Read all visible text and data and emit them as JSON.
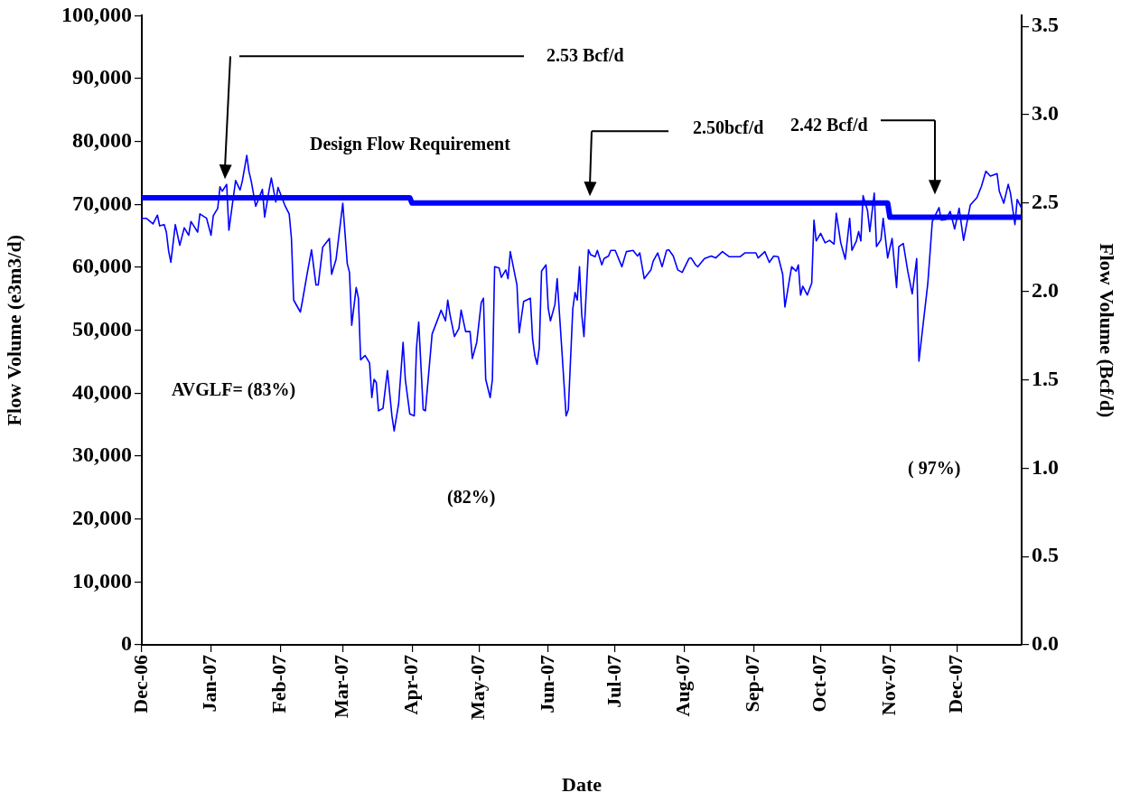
{
  "chart_data": {
    "type": "line",
    "xlabel": "Date",
    "ylabel": "Flow Volume (e3m3/d)",
    "y2label": "Flow Volume (Bcf/d)",
    "xlim": [
      "2006-12-01",
      "2007-12-30"
    ],
    "xticks": [
      {
        "value": "2006-12-01",
        "label": "Dec-06"
      },
      {
        "value": "2007-01-01",
        "label": "Jan-07"
      },
      {
        "value": "2007-02-01",
        "label": "Feb-07"
      },
      {
        "value": "2007-03-01",
        "label": "Mar-07"
      },
      {
        "value": "2007-04-01",
        "label": "Apr-07"
      },
      {
        "value": "2007-05-01",
        "label": "May-07"
      },
      {
        "value": "2007-06-01",
        "label": "Jun-07"
      },
      {
        "value": "2007-07-01",
        "label": "Jul-07"
      },
      {
        "value": "2007-08-01",
        "label": "Aug-07"
      },
      {
        "value": "2007-09-01",
        "label": "Sep-07"
      },
      {
        "value": "2007-10-01",
        "label": "Oct-07"
      },
      {
        "value": "2007-11-01",
        "label": "Nov-07"
      },
      {
        "value": "2007-12-01",
        "label": "Dec-07"
      }
    ],
    "ylim": [
      0,
      100000
    ],
    "yticks": [
      {
        "value": 0,
        "label": "0"
      },
      {
        "value": 10000,
        "label": "10,000"
      },
      {
        "value": 20000,
        "label": "20,000"
      },
      {
        "value": 30000,
        "label": "30,000"
      },
      {
        "value": 40000,
        "label": "40,000"
      },
      {
        "value": 50000,
        "label": "50,000"
      },
      {
        "value": 60000,
        "label": "60,000"
      },
      {
        "value": 70000,
        "label": "70,000"
      },
      {
        "value": 80000,
        "label": "80,000"
      },
      {
        "value": 90000,
        "label": "90,000"
      },
      {
        "value": 100000,
        "label": "100,000"
      }
    ],
    "y2lim": [
      0,
      3.56
    ],
    "y2ticks": [
      {
        "value": 0,
        "label": "0.0"
      },
      {
        "value": 0.5,
        "label": "0.5"
      },
      {
        "value": 1,
        "label": "1.0"
      },
      {
        "value": 1.5,
        "label": "1.5"
      },
      {
        "value": 2,
        "label": "2.0"
      },
      {
        "value": 2.5,
        "label": "2.5"
      },
      {
        "value": 3,
        "label": "3.0"
      },
      {
        "value": 3.5,
        "label": "3.5"
      }
    ],
    "grid": false,
    "legend": false,
    "marker": "none",
    "annotations": [
      "2.53 Bcf/d",
      "Design Flow Requirement",
      "2.50bcf/d",
      "2.42 Bcf/d",
      "AVGLF= (83%)",
      "(82%)",
      "( 97%)"
    ],
    "series": [
      {
        "color": "#0000ff",
        "x": [
          "2006-12-01",
          "2006-12-03",
          "2006-12-06",
          "2006-12-08",
          "2006-12-09",
          "2006-12-11",
          "2006-12-12",
          "2006-12-13",
          "2006-12-14",
          "2006-12-16",
          "2006-12-18",
          "2006-12-20",
          "2006-12-22",
          "2006-12-23",
          "2006-12-26",
          "2006-12-27",
          "2006-12-30",
          "2007-01-01",
          "2007-01-02",
          "2007-01-04",
          "2007-01-05",
          "2007-01-06",
          "2007-01-08",
          "2007-01-09",
          "2007-01-12",
          "2007-01-14",
          "2007-01-15",
          "2007-01-17",
          "2007-01-18",
          "2007-01-19",
          "2007-01-21",
          "2007-01-24",
          "2007-01-25",
          "2007-01-27",
          "2007-01-28",
          "2007-01-30",
          "2007-01-31",
          "2007-02-03",
          "2007-02-05",
          "2007-02-06",
          "2007-02-07",
          "2007-02-10",
          "2007-02-11",
          "2007-02-13",
          "2007-02-15",
          "2007-02-17",
          "2007-02-18",
          "2007-02-20",
          "2007-02-23",
          "2007-02-24",
          "2007-02-26",
          "2007-03-01",
          "2007-03-03",
          "2007-03-04",
          "2007-03-05",
          "2007-03-07",
          "2007-03-08",
          "2007-03-09",
          "2007-03-11",
          "2007-03-13",
          "2007-03-14",
          "2007-03-15",
          "2007-03-16",
          "2007-03-17",
          "2007-03-19",
          "2007-03-21",
          "2007-03-23",
          "2007-03-24",
          "2007-03-26",
          "2007-03-28",
          "2007-03-29",
          "2007-03-31",
          "2007-04-02",
          "2007-04-03",
          "2007-04-04",
          "2007-04-06",
          "2007-04-07",
          "2007-04-10",
          "2007-04-13",
          "2007-04-14",
          "2007-04-16",
          "2007-04-17",
          "2007-04-18",
          "2007-04-20",
          "2007-04-22",
          "2007-04-23",
          "2007-04-25",
          "2007-04-27",
          "2007-04-28",
          "2007-04-30",
          "2007-05-02",
          "2007-05-03",
          "2007-05-04",
          "2007-05-06",
          "2007-05-07",
          "2007-05-08",
          "2007-05-10",
          "2007-05-11",
          "2007-05-13",
          "2007-05-14",
          "2007-05-15",
          "2007-05-18",
          "2007-05-19",
          "2007-05-21",
          "2007-05-24",
          "2007-05-25",
          "2007-05-26",
          "2007-05-27",
          "2007-05-28",
          "2007-05-29",
          "2007-05-31",
          "2007-06-01",
          "2007-06-02",
          "2007-06-04",
          "2007-06-05",
          "2007-06-07",
          "2007-06-09",
          "2007-06-10",
          "2007-06-12",
          "2007-06-13",
          "2007-06-14",
          "2007-06-15",
          "2007-06-16",
          "2007-06-17",
          "2007-06-19",
          "2007-06-20",
          "2007-06-22",
          "2007-06-23",
          "2007-06-25",
          "2007-06-26",
          "2007-06-28",
          "2007-06-29",
          "2007-07-01",
          "2007-07-04",
          "2007-07-06",
          "2007-07-09",
          "2007-07-11",
          "2007-07-12",
          "2007-07-14",
          "2007-07-17",
          "2007-07-18",
          "2007-07-20",
          "2007-07-22",
          "2007-07-24",
          "2007-07-25",
          "2007-07-27",
          "2007-07-29",
          "2007-07-31",
          "2007-08-03",
          "2007-08-04",
          "2007-08-06",
          "2007-08-07",
          "2007-08-10",
          "2007-08-13",
          "2007-08-15",
          "2007-08-18",
          "2007-08-21",
          "2007-08-26",
          "2007-08-28",
          "2007-09-02",
          "2007-09-03",
          "2007-09-06",
          "2007-09-08",
          "2007-09-10",
          "2007-09-12",
          "2007-09-14",
          "2007-09-15",
          "2007-09-17",
          "2007-09-18",
          "2007-09-20",
          "2007-09-21",
          "2007-09-22",
          "2007-09-23",
          "2007-09-25",
          "2007-09-27",
          "2007-09-28",
          "2007-09-29",
          "2007-10-01",
          "2007-10-03",
          "2007-10-05",
          "2007-10-07",
          "2007-10-08",
          "2007-10-10",
          "2007-10-12",
          "2007-10-14",
          "2007-10-15",
          "2007-10-17",
          "2007-10-18",
          "2007-10-19",
          "2007-10-20",
          "2007-10-22",
          "2007-10-23",
          "2007-10-25",
          "2007-10-26",
          "2007-10-28",
          "2007-10-29",
          "2007-10-31",
          "2007-11-02",
          "2007-11-04",
          "2007-11-05",
          "2007-11-07",
          "2007-11-09",
          "2007-11-11",
          "2007-11-13",
          "2007-11-14",
          "2007-11-18",
          "2007-11-20",
          "2007-11-23",
          "2007-11-24",
          "2007-11-26",
          "2007-11-28",
          "2007-11-30",
          "2007-12-02",
          "2007-12-04",
          "2007-12-07",
          "2007-12-10",
          "2007-12-12",
          "2007-12-14",
          "2007-12-16",
          "2007-12-19",
          "2007-12-20",
          "2007-12-22",
          "2007-12-24",
          "2007-12-25",
          "2007-12-27",
          "2007-12-28",
          "2007-12-30"
        ],
        "values": [
          67800,
          67800,
          66900,
          68300,
          66600,
          66800,
          65600,
          62600,
          60800,
          66800,
          63500,
          66300,
          65100,
          67300,
          65600,
          68500,
          67800,
          65100,
          68200,
          69400,
          72800,
          72100,
          73200,
          65900,
          73800,
          72300,
          73700,
          77800,
          75200,
          73700,
          69700,
          72400,
          68000,
          72300,
          74200,
          70400,
          72700,
          69900,
          68500,
          64600,
          54800,
          52900,
          54800,
          58900,
          62800,
          57200,
          57200,
          63200,
          64600,
          58900,
          61300,
          70200,
          60600,
          59200,
          50800,
          56800,
          55100,
          45300,
          46000,
          44800,
          39300,
          42200,
          41700,
          37200,
          37600,
          43600,
          36400,
          34000,
          38300,
          48100,
          42200,
          36700,
          36400,
          47200,
          51300,
          37400,
          37200,
          49400,
          52200,
          53200,
          51500,
          54800,
          52500,
          49000,
          50300,
          53200,
          49800,
          49800,
          45500,
          48100,
          54400,
          55100,
          42200,
          39300,
          42200,
          60100,
          59900,
          58400,
          59600,
          58200,
          62500,
          57200,
          49600,
          54600,
          55100,
          48600,
          46000,
          44600,
          47200,
          59400,
          60400,
          53500,
          51500,
          54100,
          58200,
          47400,
          36400,
          37400,
          53400,
          56000,
          54800,
          60100,
          52500,
          49000,
          62800,
          62000,
          61700,
          62700,
          60400,
          61400,
          61800,
          62700,
          62700,
          60100,
          62500,
          62700,
          61800,
          62300,
          58200,
          59600,
          61000,
          62300,
          60100,
          62700,
          62800,
          61800,
          59600,
          59200,
          61400,
          61500,
          60400,
          60100,
          61400,
          61800,
          61500,
          62500,
          61700,
          61700,
          62300,
          62300,
          61500,
          62500,
          60800,
          61800,
          61700,
          58900,
          53700,
          58000,
          60100,
          59400,
          60400,
          55600,
          57000,
          55600,
          57500,
          67500,
          64200,
          65400,
          63900,
          64300,
          63700,
          68600,
          63900,
          61300,
          67800,
          62700,
          64200,
          65700,
          64200,
          71400,
          69000,
          65700,
          71800,
          63300,
          64400,
          67800,
          61500,
          64600,
          56800,
          63300,
          63800,
          59400,
          55800,
          61400,
          45100,
          57500,
          67300,
          69500,
          67500,
          67600,
          68900,
          66100,
          69400,
          64300,
          69900,
          71100,
          72900,
          75300,
          74500,
          74900,
          72100,
          70200,
          73200,
          71800,
          66800,
          70800,
          69400
        ]
      },
      {
        "color": "#0000ff",
        "axis": "y2",
        "x": [
          "2006-12-01",
          "2007-03-31",
          "2007-04-01",
          "2007-10-31",
          "2007-11-01",
          "2007-12-30"
        ],
        "values": [
          2.53,
          2.53,
          2.5,
          2.5,
          2.42,
          2.42
        ]
      }
    ]
  }
}
